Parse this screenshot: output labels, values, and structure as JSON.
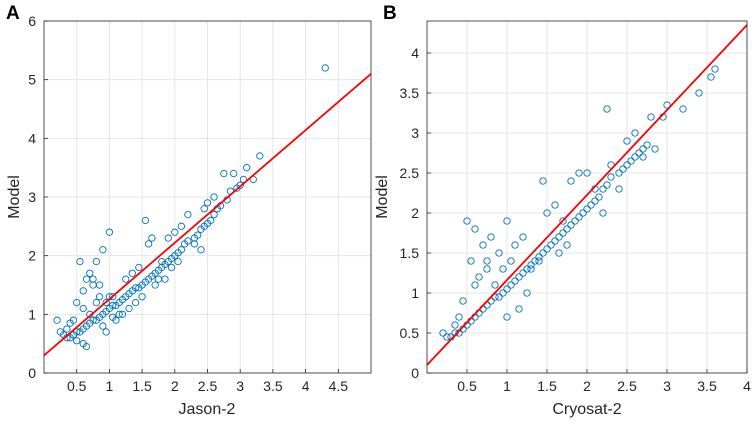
{
  "chart_data": [
    {
      "type": "scatter",
      "panel_label": "A",
      "xlabel": "Jason-2",
      "ylabel": "Model",
      "xlim": [
        0,
        5
      ],
      "ylim": [
        0,
        6
      ],
      "xticks": [
        0.5,
        1,
        1.5,
        2,
        2.5,
        3,
        3.5,
        4,
        4.5
      ],
      "yticks": [
        0,
        1,
        2,
        3,
        4,
        5,
        6
      ],
      "xtick_labels": [
        "0.5",
        "1",
        "1.5",
        "2",
        "2.5",
        "3",
        "3.5",
        "4",
        "4.5"
      ],
      "ytick_labels": [
        "0",
        "1",
        "2",
        "3",
        "4",
        "5",
        "6"
      ],
      "grid": true,
      "marker_color": "#0072BD",
      "line_color": "#FF0000",
      "fit_line": {
        "x": [
          0,
          5
        ],
        "y": [
          0.3,
          5.1
        ]
      },
      "series": [
        {
          "name": "observations",
          "x": [
            4.3,
            3.3,
            3.1,
            3.05,
            3.0,
            2.95,
            2.85,
            2.8,
            2.7,
            2.65,
            2.6,
            2.55,
            2.5,
            2.45,
            2.4,
            2.35,
            2.3,
            2.2,
            2.15,
            2.1,
            2.05,
            2.0,
            1.95,
            1.9,
            1.85,
            1.8,
            1.75,
            1.7,
            1.65,
            1.6,
            1.55,
            1.5,
            1.45,
            1.4,
            1.35,
            1.3,
            1.25,
            1.2,
            1.15,
            1.1,
            1.05,
            1.0,
            0.95,
            0.9,
            0.85,
            0.8,
            0.75,
            0.7,
            0.65,
            0.6,
            0.55,
            0.5,
            0.45,
            0.4,
            0.35,
            0.3,
            0.25,
            0.2,
            0.6,
            0.7,
            0.8,
            0.9,
            1.0,
            0.55,
            0.65,
            0.75,
            0.85,
            0.5,
            0.6,
            0.7,
            0.45,
            0.4,
            0.35,
            0.5,
            0.6,
            0.65,
            1.2,
            1.1,
            1.3,
            1.4,
            0.9,
            0.95,
            1.05,
            1.15,
            0.8,
            1.0,
            1.25,
            1.35,
            1.45,
            1.6,
            1.7,
            1.8,
            1.9,
            2.0,
            2.1,
            2.2,
            2.3,
            2.4,
            2.5,
            2.6,
            2.75,
            2.9,
            3.2,
            1.95,
            2.05,
            1.55,
            1.65,
            1.75,
            0.75,
            0.85,
            1.5,
            2.45,
            1.85,
            0.95,
            1.05
          ],
          "y": [
            5.2,
            3.7,
            3.5,
            3.3,
            3.2,
            3.15,
            3.1,
            2.95,
            2.85,
            2.8,
            2.7,
            2.6,
            2.55,
            2.5,
            2.45,
            2.35,
            2.3,
            2.25,
            2.2,
            2.1,
            2.05,
            2.0,
            1.95,
            1.9,
            1.85,
            1.8,
            1.75,
            1.7,
            1.65,
            1.6,
            1.55,
            1.5,
            1.45,
            1.45,
            1.4,
            1.35,
            1.3,
            1.25,
            1.2,
            1.15,
            1.15,
            1.1,
            1.05,
            1.0,
            0.95,
            0.9,
            0.9,
            0.85,
            0.8,
            0.75,
            0.7,
            0.7,
            0.65,
            0.6,
            0.6,
            0.65,
            0.7,
            0.9,
            1.4,
            1.7,
            1.9,
            2.1,
            2.4,
            1.9,
            1.6,
            1.5,
            1.3,
            1.2,
            1.1,
            1.0,
            0.9,
            0.85,
            0.75,
            0.55,
            0.5,
            0.45,
            1.0,
            0.9,
            1.1,
            1.2,
            0.8,
            0.7,
            0.95,
            1.0,
            1.2,
            1.3,
            1.6,
            1.7,
            1.8,
            2.2,
            1.5,
            1.9,
            2.3,
            2.4,
            2.5,
            2.7,
            2.2,
            2.1,
            2.9,
            3.0,
            3.4,
            3.4,
            3.3,
            1.8,
            1.9,
            2.6,
            2.3,
            1.6,
            1.6,
            1.5,
            1.3,
            2.8,
            1.6,
            1.2,
            1.3
          ]
        }
      ]
    },
    {
      "type": "scatter",
      "panel_label": "B",
      "xlabel": "Cryosat-2",
      "ylabel": "Model",
      "xlim": [
        0,
        4
      ],
      "ylim": [
        0,
        4.4
      ],
      "xticks": [
        0.5,
        1,
        1.5,
        2,
        2.5,
        3,
        3.5,
        4
      ],
      "yticks": [
        0,
        0.5,
        1,
        1.5,
        2,
        2.5,
        3,
        3.5,
        4
      ],
      "xtick_labels": [
        "0.5",
        "1",
        "1.5",
        "2",
        "2.5",
        "3",
        "3.5",
        "4"
      ],
      "ytick_labels": [
        "0",
        "0.5",
        "1",
        "1.5",
        "2",
        "2.5",
        "3",
        "3.5",
        "4"
      ],
      "grid": true,
      "marker_color": "#0072BD",
      "line_color": "#FF0000",
      "fit_line": {
        "x": [
          0,
          4
        ],
        "y": [
          0.1,
          4.35
        ]
      },
      "series": [
        {
          "name": "observations",
          "x": [
            3.6,
            3.55,
            3.4,
            3.2,
            3.0,
            2.95,
            2.8,
            2.75,
            2.7,
            2.65,
            2.6,
            2.55,
            2.5,
            2.45,
            2.4,
            2.3,
            2.25,
            2.2,
            2.15,
            2.1,
            2.05,
            2.0,
            1.95,
            1.9,
            1.85,
            1.8,
            1.75,
            1.7,
            1.65,
            1.6,
            1.55,
            1.5,
            1.45,
            1.4,
            1.35,
            1.3,
            1.25,
            1.2,
            1.15,
            1.1,
            1.05,
            1.0,
            0.95,
            0.9,
            0.85,
            0.8,
            0.75,
            0.7,
            0.65,
            0.6,
            0.55,
            0.5,
            0.45,
            0.4,
            0.35,
            0.3,
            0.25,
            0.2,
            0.5,
            0.6,
            0.7,
            0.8,
            0.9,
            1.0,
            0.55,
            0.65,
            0.75,
            0.45,
            0.4,
            0.35,
            1.1,
            1.2,
            1.3,
            1.4,
            1.5,
            1.6,
            1.7,
            1.8,
            1.9,
            2.0,
            2.1,
            2.2,
            2.3,
            2.4,
            2.5,
            2.6,
            2.7,
            2.85,
            1.0,
            1.15,
            1.25,
            0.85,
            0.95,
            1.05,
            2.25,
            1.45,
            1.65,
            1.75,
            0.75,
            0.6
          ],
          "y": [
            3.8,
            3.7,
            3.5,
            3.3,
            3.35,
            3.2,
            3.2,
            2.85,
            2.8,
            2.75,
            2.7,
            2.65,
            2.6,
            2.55,
            2.5,
            2.45,
            2.35,
            2.3,
            2.2,
            2.15,
            2.1,
            2.05,
            2.0,
            1.95,
            1.9,
            1.85,
            1.8,
            1.75,
            1.7,
            1.65,
            1.6,
            1.55,
            1.5,
            1.45,
            1.4,
            1.35,
            1.3,
            1.25,
            1.2,
            1.15,
            1.1,
            1.05,
            1.0,
            0.95,
            0.95,
            0.9,
            0.85,
            0.8,
            0.75,
            0.7,
            0.65,
            0.6,
            0.55,
            0.5,
            0.5,
            0.45,
            0.45,
            0.5,
            1.9,
            1.8,
            1.6,
            1.7,
            1.5,
            1.9,
            1.4,
            1.2,
            1.3,
            0.9,
            0.7,
            0.6,
            1.6,
            1.7,
            1.3,
            1.4,
            2.0,
            2.1,
            1.9,
            2.4,
            2.5,
            2.5,
            2.3,
            2.0,
            2.6,
            2.3,
            2.9,
            3.0,
            2.7,
            2.8,
            0.7,
            0.8,
            1.0,
            1.1,
            1.3,
            1.4,
            3.3,
            2.4,
            1.5,
            1.6,
            1.4,
            1.1
          ]
        }
      ]
    }
  ]
}
